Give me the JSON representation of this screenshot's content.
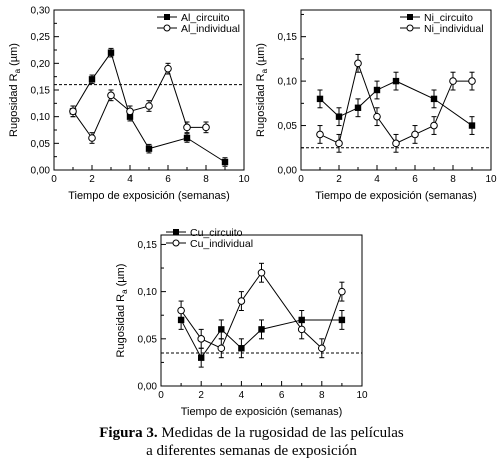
{
  "chart_data": [
    {
      "type": "line",
      "ylabel_main": "Rugosidad R",
      "ylabel_sub": "a",
      "ylabel_unit": " (µm)",
      "xlabel": "Tiempo de exposición (semanas)",
      "xlim": [
        0,
        10
      ],
      "ylim": [
        0,
        0.3
      ],
      "xticks": [
        "0",
        "2",
        "4",
        "6",
        "8",
        "10"
      ],
      "yticks": [
        "0,00",
        "0,05",
        "0,10",
        "0,15",
        "0,20",
        "0,25",
        "0,30"
      ],
      "reference_line": 0.16,
      "legend_position": "top-right",
      "series": [
        {
          "name": "Al_circuito",
          "marker": "filled-square",
          "x": [
            1,
            2,
            3,
            4,
            5,
            7,
            9
          ],
          "y": [
            0.11,
            0.17,
            0.22,
            0.1,
            0.04,
            0.06,
            0.015
          ],
          "err": [
            0.01,
            0.008,
            0.008,
            0.008,
            0.008,
            0.008,
            0.008
          ]
        },
        {
          "name": "Al_individual",
          "marker": "open-circle",
          "x": [
            1,
            2,
            3,
            4,
            5,
            6,
            7,
            8
          ],
          "y": [
            0.11,
            0.06,
            0.14,
            0.11,
            0.12,
            0.19,
            0.08,
            0.08
          ],
          "err": [
            0.01,
            0.01,
            0.01,
            0.01,
            0.01,
            0.01,
            0.01,
            0.01
          ]
        }
      ]
    },
    {
      "type": "line",
      "ylabel_main": "Rugosidad R",
      "ylabel_sub": "a",
      "ylabel_unit": " (µm)",
      "xlabel": "Tiempo de exposición (semanas)",
      "xlim": [
        0,
        10
      ],
      "ylim": [
        0,
        0.18
      ],
      "xticks": [
        "0",
        "2",
        "4",
        "6",
        "8",
        "10"
      ],
      "yticks": [
        "0,00",
        "0,05",
        "0,10",
        "0,15"
      ],
      "reference_line": 0.025,
      "legend_position": "top-right",
      "series": [
        {
          "name": "Ni_circuito",
          "marker": "filled-square",
          "x": [
            1,
            2,
            3,
            4,
            5,
            7,
            9
          ],
          "y": [
            0.08,
            0.06,
            0.07,
            0.09,
            0.1,
            0.08,
            0.05
          ],
          "err": [
            0.01,
            0.01,
            0.01,
            0.01,
            0.01,
            0.01,
            0.01
          ]
        },
        {
          "name": "Ni_individual",
          "marker": "open-circle",
          "x": [
            1,
            2,
            3,
            4,
            5,
            6,
            7,
            8,
            9
          ],
          "y": [
            0.04,
            0.03,
            0.12,
            0.06,
            0.03,
            0.04,
            0.05,
            0.1,
            0.1
          ],
          "err": [
            0.01,
            0.01,
            0.01,
            0.01,
            0.01,
            0.01,
            0.01,
            0.01,
            0.01
          ]
        }
      ]
    },
    {
      "type": "line",
      "ylabel_main": "Rugosidad R",
      "ylabel_sub": "a",
      "ylabel_unit": " (µm)",
      "xlabel": "Tiempo de exposición (semanas)",
      "xlim": [
        0,
        10
      ],
      "ylim": [
        0,
        0.16
      ],
      "xticks": [
        "0",
        "2",
        "4",
        "6",
        "8",
        "10"
      ],
      "yticks": [
        "0,00",
        "0,05",
        "0,10",
        "0,15"
      ],
      "reference_line": 0.035,
      "legend_position": "top-left",
      "series": [
        {
          "name": "Cu_circuito",
          "marker": "filled-square",
          "x": [
            1,
            2,
            3,
            4,
            5,
            7,
            9
          ],
          "y": [
            0.07,
            0.03,
            0.06,
            0.04,
            0.06,
            0.07,
            0.07
          ],
          "err": [
            0.01,
            0.01,
            0.01,
            0.01,
            0.01,
            0.01,
            0.01
          ]
        },
        {
          "name": "Cu_individual",
          "marker": "open-circle",
          "x": [
            1,
            2,
            3,
            4,
            5,
            7,
            8,
            9
          ],
          "y": [
            0.08,
            0.05,
            0.04,
            0.09,
            0.12,
            0.06,
            0.04,
            0.1
          ],
          "err": [
            0.01,
            0.01,
            0.01,
            0.01,
            0.01,
            0.01,
            0.01,
            0.01
          ]
        }
      ]
    }
  ],
  "caption": {
    "label": "Figura 3.",
    "line1": " Medidas de la rugosidad de las películas",
    "line2": "a diferentes semanas de exposición"
  }
}
